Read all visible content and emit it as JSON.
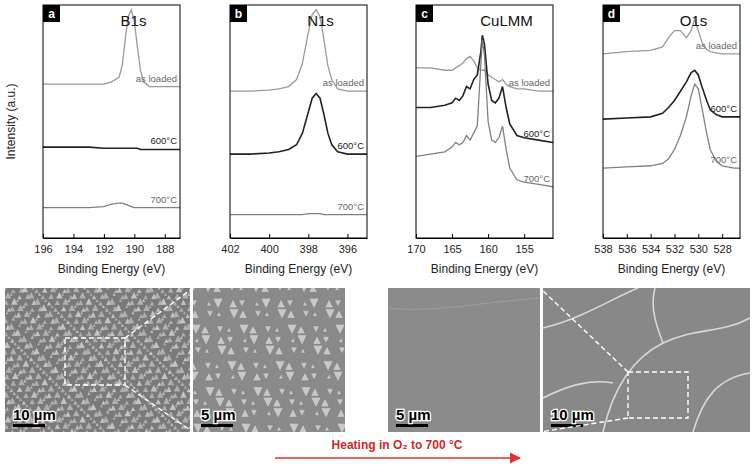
{
  "chart_data": [
    {
      "type": "line",
      "panel": "a",
      "title": "B1s",
      "x_label": "Binding Energy (eV)",
      "y_label": "Intensity (a.u.)",
      "xlim": [
        196,
        187
      ],
      "xticks": [
        196,
        194,
        192,
        190,
        188
      ],
      "ylim": [
        0,
        10
      ],
      "tick_labels": "x",
      "x": [
        196,
        195,
        194,
        193,
        192,
        191.5,
        191,
        190.8,
        190.6,
        190.4,
        190.2,
        190,
        189.8,
        189.6,
        189.4,
        189,
        188.5,
        188,
        187
      ],
      "series": [
        {
          "name": "as loaded",
          "color": "#9a9a9a",
          "values": [
            6.6,
            6.6,
            6.6,
            6.6,
            6.6,
            6.7,
            6.9,
            7.4,
            8.5,
            9.5,
            9.8,
            9.3,
            8.2,
            7.2,
            6.7,
            6.5,
            6.5,
            6.5,
            6.5
          ]
        },
        {
          "name": "600°C",
          "color": "#222222",
          "values": [
            3.9,
            3.9,
            3.9,
            3.9,
            3.85,
            3.85,
            3.85,
            3.85,
            3.85,
            3.85,
            3.85,
            3.85,
            3.85,
            3.8,
            3.8,
            3.8,
            3.8,
            3.8,
            3.8
          ]
        },
        {
          "name": "700°C",
          "color": "#808080",
          "values": [
            1.3,
            1.3,
            1.3,
            1.3,
            1.35,
            1.45,
            1.5,
            1.5,
            1.45,
            1.4,
            1.35,
            1.3,
            1.3,
            1.3,
            1.3,
            1.3,
            1.3,
            1.3,
            1.3
          ]
        }
      ]
    },
    {
      "type": "line",
      "panel": "b",
      "title": "N1s",
      "x_label": "Binding Energy (eV)",
      "xlim": [
        402,
        395
      ],
      "xticks": [
        402,
        400,
        398,
        396
      ],
      "ylim": [
        0,
        10
      ],
      "tick_labels": "x",
      "x": [
        402,
        401,
        400,
        399.5,
        399,
        398.6,
        398.3,
        398,
        397.8,
        397.6,
        397.4,
        397.2,
        397,
        396.8,
        396.5,
        396,
        395
      ],
      "series": [
        {
          "name": "as loaded",
          "color": "#9a9a9a",
          "values": [
            6.3,
            6.3,
            6.35,
            6.4,
            6.5,
            6.8,
            7.5,
            8.8,
            9.6,
            9.8,
            9.5,
            8.5,
            7.4,
            6.8,
            6.4,
            6.3,
            6.3
          ]
        },
        {
          "name": "600°C",
          "color": "#222222",
          "values": [
            3.6,
            3.6,
            3.65,
            3.7,
            3.8,
            4.0,
            4.5,
            5.4,
            6.0,
            6.2,
            6.0,
            5.3,
            4.5,
            4.0,
            3.7,
            3.6,
            3.6
          ]
        },
        {
          "name": "700°C",
          "color": "#808080",
          "values": [
            1.0,
            1.0,
            1.0,
            1.0,
            1.0,
            1.0,
            1.0,
            1.05,
            1.05,
            1.05,
            1.05,
            1.0,
            1.0,
            1.0,
            1.0,
            1.0,
            1.0
          ]
        }
      ]
    },
    {
      "type": "line",
      "panel": "c",
      "title": "CuLMM",
      "x_label": "Binding Energy (eV)",
      "xlim": [
        170,
        151
      ],
      "xticks": [
        170,
        165,
        160,
        155
      ],
      "ylim": [
        0,
        10
      ],
      "tick_labels": "x",
      "x": [
        170,
        168,
        166,
        165,
        164.5,
        164,
        163.5,
        163,
        162.5,
        162,
        161.5,
        161,
        160.8,
        160.5,
        160,
        159.5,
        159,
        158.5,
        158,
        157.5,
        157,
        156,
        155,
        153,
        151
      ],
      "series": [
        {
          "name": "as loaded",
          "color": "#9a9a9a",
          "values": [
            7.3,
            7.3,
            7.2,
            7.2,
            7.3,
            7.4,
            7.5,
            7.7,
            7.8,
            7.6,
            7.3,
            7.2,
            7.2,
            7.2,
            7.0,
            6.9,
            6.8,
            6.7,
            6.8,
            6.6,
            6.5,
            6.4,
            6.4,
            6.3,
            6.3
          ]
        },
        {
          "name": "600°C",
          "color": "#222222",
          "values": [
            5.6,
            5.6,
            5.7,
            5.8,
            6.0,
            5.9,
            6.1,
            6.5,
            6.4,
            6.8,
            7.0,
            8.0,
            8.7,
            8.3,
            6.6,
            5.9,
            5.8,
            6.0,
            6.5,
            5.6,
            4.9,
            4.4,
            4.3,
            4.2,
            4.1
          ]
        },
        {
          "name": "700°C",
          "color": "#808080",
          "values": [
            3.5,
            3.6,
            3.7,
            3.9,
            4.1,
            4.0,
            4.1,
            4.4,
            4.2,
            4.5,
            4.8,
            7.5,
            8.5,
            7.8,
            5.0,
            4.2,
            4.1,
            4.3,
            4.8,
            3.8,
            3.0,
            2.5,
            2.4,
            2.3,
            2.2
          ]
        }
      ]
    },
    {
      "type": "line",
      "panel": "d",
      "title": "O1s",
      "x_label": "Binding Energy (eV)",
      "xlim": [
        538,
        526.5
      ],
      "xticks": [
        538,
        536,
        534,
        532,
        530,
        528
      ],
      "ylim": [
        0,
        10
      ],
      "tick_labels": "x",
      "x": [
        538,
        536,
        534,
        533,
        532.5,
        532,
        531.5,
        531,
        530.6,
        530.3,
        530,
        529.7,
        529.3,
        529,
        528.5,
        528,
        527,
        526.5
      ],
      "series": [
        {
          "name": "as loaded",
          "color": "#9a9a9a",
          "values": [
            7.9,
            8.0,
            8.05,
            8.2,
            8.6,
            8.9,
            8.9,
            8.6,
            8.9,
            9.4,
            8.9,
            8.4,
            8.1,
            8.0,
            7.95,
            7.9,
            7.9,
            7.9
          ]
        },
        {
          "name": "600°C",
          "color": "#222222",
          "values": [
            5.1,
            5.15,
            5.2,
            5.35,
            5.6,
            5.9,
            6.3,
            6.7,
            7.1,
            7.2,
            7.0,
            6.5,
            5.9,
            5.5,
            5.3,
            5.2,
            5.2,
            5.2
          ]
        },
        {
          "name": "700°C",
          "color": "#808080",
          "values": [
            3.0,
            3.05,
            3.1,
            3.2,
            3.4,
            3.8,
            4.4,
            5.2,
            6.1,
            6.6,
            6.4,
            5.6,
            4.5,
            3.8,
            3.3,
            3.1,
            3.0,
            3.0
          ]
        }
      ]
    }
  ],
  "images": [
    {
      "scale_bar": "10 µm"
    },
    {
      "scale_bar": "5 µm"
    },
    {
      "scale_bar": "5 µm"
    },
    {
      "scale_bar": "10 µm"
    }
  ],
  "arrow_label": "Heating in O₂ to 700 °C"
}
